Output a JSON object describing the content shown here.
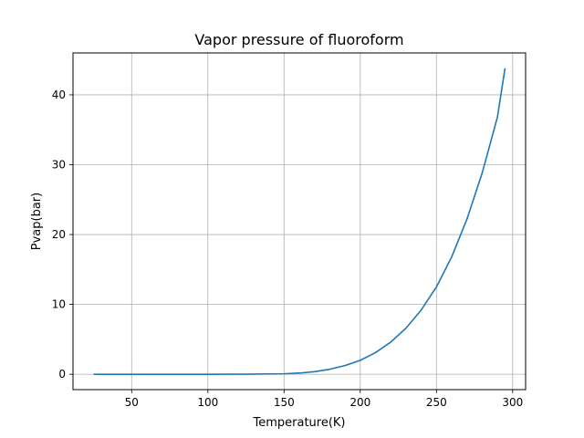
{
  "chart_data": {
    "type": "line",
    "title": "Vapor pressure of fluoroform",
    "xlabel": "Temperature(K)",
    "ylabel": "Pvap(bar)",
    "xlim": [
      11.5,
      308.5
    ],
    "ylim": [
      -2.2,
      46
    ],
    "grid": true,
    "legend": "none",
    "xticks": [
      50,
      100,
      150,
      200,
      250,
      300
    ],
    "yticks": [
      0,
      10,
      20,
      30,
      40
    ],
    "line_color": "#1f77b4",
    "series": [
      {
        "x": [
          25,
          50,
          75,
          100,
          125,
          150,
          160,
          170,
          180,
          190,
          200,
          210,
          220,
          230,
          240,
          250,
          260,
          270,
          280,
          290,
          295
        ],
        "y": [
          0,
          0,
          0,
          0,
          0.01,
          0.07,
          0.17,
          0.37,
          0.72,
          1.25,
          2.0,
          3.1,
          4.6,
          6.6,
          9.2,
          12.5,
          16.8,
          22.2,
          28.8,
          36.8,
          43.8
        ]
      }
    ]
  }
}
